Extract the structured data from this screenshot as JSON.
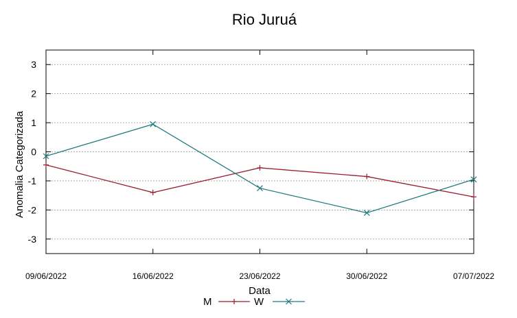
{
  "chart_data": {
    "type": "line",
    "title": "Rio Juruá",
    "xlabel": "Data",
    "ylabel": "Anomalia Categorizada",
    "categories": [
      "09/06/2022",
      "16/06/2022",
      "23/06/2022",
      "30/06/2022",
      "07/07/2022"
    ],
    "ylim": [
      -3.5,
      3.5
    ],
    "yticks": [
      -3,
      -2,
      -1,
      0,
      1,
      2,
      3
    ],
    "ytick_labels": [
      "-3",
      "-2",
      "-1",
      "0",
      "1",
      "2",
      "3"
    ],
    "grid": true,
    "legend_position": "bottom-center",
    "series": [
      {
        "name": "M",
        "marker": "plus",
        "color": "#9b1c31",
        "values": [
          -0.45,
          -1.4,
          -0.55,
          -0.85,
          -1.55
        ]
      },
      {
        "name": "W",
        "marker": "x",
        "color": "#1f7b80",
        "values": [
          -0.15,
          0.95,
          -1.25,
          -2.1,
          -0.95
        ]
      }
    ]
  }
}
